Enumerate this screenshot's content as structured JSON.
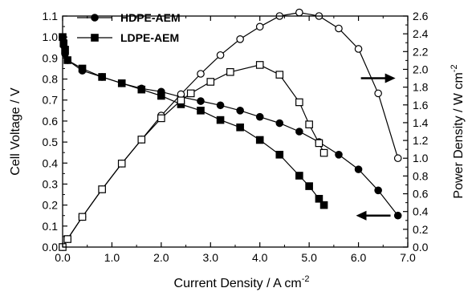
{
  "chart_data": {
    "type": "line",
    "title": "",
    "xlabel": "Current Density / A cm",
    "xlabel_sup": "-2",
    "ylabel_left": "Cell Voltage / V",
    "ylabel_right": "Power Density / W cm",
    "ylabel_right_sup": "-2",
    "xlim": [
      0,
      7
    ],
    "ylim_left": [
      0,
      1.1
    ],
    "ylim_right": [
      0,
      2.6
    ],
    "x_ticks": [
      "0.0",
      "1.0",
      "2.0",
      "3.0",
      "4.0",
      "5.0",
      "6.0",
      "7.0"
    ],
    "y_left_ticks": [
      "0.0",
      "0.1",
      "0.2",
      "0.3",
      "0.4",
      "0.5",
      "0.6",
      "0.7",
      "0.8",
      "0.9",
      "1.0",
      "1.1"
    ],
    "y_right_ticks": [
      "0.0",
      "0.2",
      "0.4",
      "0.6",
      "0.8",
      "1.0",
      "1.2",
      "1.4",
      "1.6",
      "1.8",
      "2.0",
      "2.2",
      "2.4",
      "2.6"
    ],
    "legend_position": "top-left",
    "grid": false,
    "series": [
      {
        "name": "HDPE-AEM",
        "axis": "left",
        "marker": "circle",
        "filled": true,
        "x": [
          0.0,
          0.02,
          0.05,
          0.1,
          0.4,
          0.8,
          1.2,
          1.6,
          2.0,
          2.4,
          2.8,
          3.2,
          3.6,
          4.0,
          4.4,
          4.8,
          5.2,
          5.6,
          6.0,
          6.4,
          6.8
        ],
        "y": [
          1.0,
          0.96,
          0.92,
          0.89,
          0.84,
          0.81,
          0.78,
          0.755,
          0.74,
          0.715,
          0.695,
          0.675,
          0.65,
          0.62,
          0.59,
          0.55,
          0.5,
          0.44,
          0.37,
          0.27,
          0.15
        ]
      },
      {
        "name": "LDPE-AEM",
        "axis": "left",
        "marker": "square",
        "filled": true,
        "x": [
          0.0,
          0.02,
          0.05,
          0.1,
          0.4,
          0.8,
          1.2,
          1.6,
          2.0,
          2.4,
          2.8,
          3.2,
          3.6,
          4.0,
          4.4,
          4.8,
          5.0,
          5.2,
          5.3
        ],
        "y": [
          1.0,
          0.97,
          0.94,
          0.89,
          0.85,
          0.81,
          0.78,
          0.75,
          0.72,
          0.68,
          0.65,
          0.605,
          0.57,
          0.51,
          0.44,
          0.34,
          0.29,
          0.23,
          0.2
        ]
      },
      {
        "name": "HDPE-AEM power density",
        "axis": "right",
        "marker": "circle",
        "filled": false,
        "x": [
          0.0,
          0.1,
          0.4,
          0.8,
          1.2,
          1.6,
          2.0,
          2.4,
          2.8,
          3.2,
          3.6,
          4.0,
          4.4,
          4.8,
          5.2,
          5.6,
          6.0,
          6.4,
          6.8
        ],
        "y": [
          0.0,
          0.09,
          0.34,
          0.65,
          0.94,
          1.21,
          1.48,
          1.72,
          1.95,
          2.16,
          2.34,
          2.48,
          2.6,
          2.64,
          2.6,
          2.46,
          2.23,
          1.73,
          1.0
        ]
      },
      {
        "name": "LDPE-AEM power density",
        "axis": "right",
        "marker": "square",
        "filled": false,
        "x": [
          0.0,
          0.1,
          0.4,
          0.8,
          1.2,
          1.6,
          2.0,
          2.4,
          2.6,
          3.0,
          3.4,
          4.0,
          4.4,
          4.8,
          5.0,
          5.2,
          5.3
        ],
        "y": [
          0.0,
          0.09,
          0.34,
          0.65,
          0.94,
          1.21,
          1.45,
          1.65,
          1.73,
          1.86,
          1.97,
          2.05,
          1.94,
          1.63,
          1.38,
          1.17,
          1.06
        ]
      }
    ],
    "annotations": [
      {
        "type": "arrow",
        "direction": "left",
        "axis": "left",
        "x_tail": 6.65,
        "x_head": 5.95,
        "y": 0.15
      },
      {
        "type": "arrow",
        "direction": "right",
        "axis": "right",
        "x_tail": 6.05,
        "x_head": 6.75,
        "y": 1.9
      }
    ]
  }
}
